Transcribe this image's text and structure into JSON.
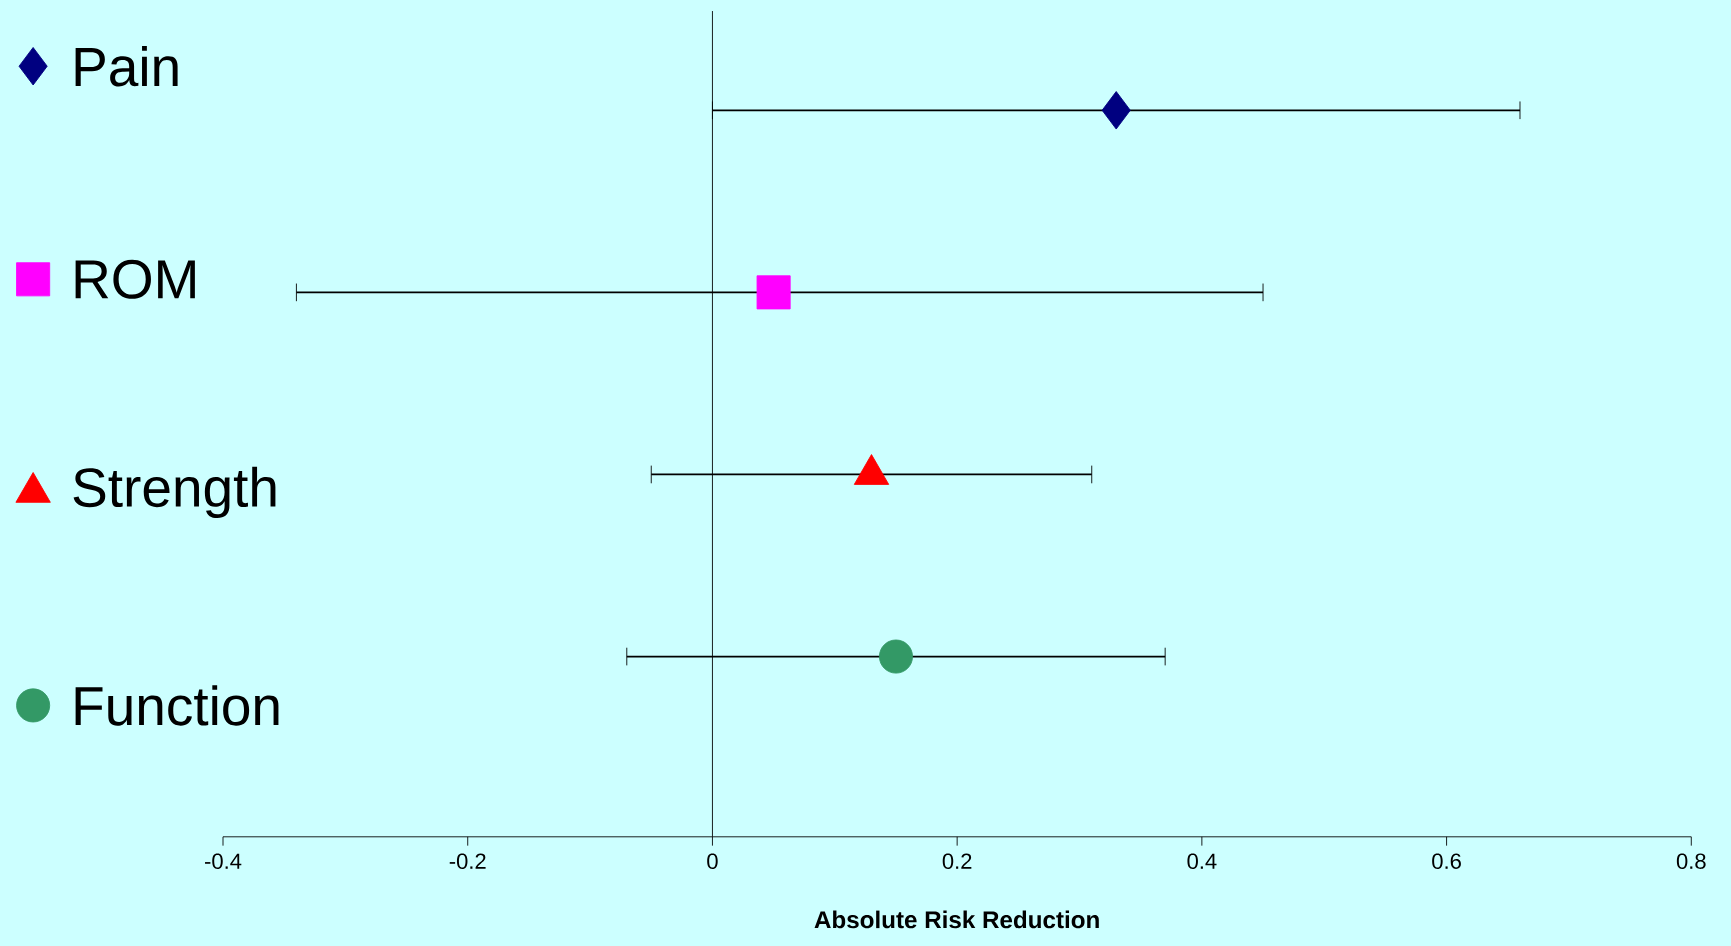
{
  "chart_data": {
    "type": "scatter",
    "orientation": "horizontal",
    "xlabel": "Absolute Risk Reduction",
    "categories": [
      null,
      null,
      null,
      null
    ],
    "xlim": [
      -0.4,
      0.8
    ],
    "xticks": [
      -0.4,
      -0.2,
      0,
      0.2,
      0.4,
      0.6,
      0.8
    ],
    "legend": "left",
    "grid": false,
    "tick_labels": "x",
    "ref_lines": [
      {
        "axis": "x",
        "value": 0,
        "color": "#000000"
      }
    ],
    "series": [
      {
        "name": "Pain",
        "color": "#000080",
        "marker": "diamond",
        "values": [
          0.33,
          null,
          null,
          null
        ],
        "errors": [
          [
            0.0,
            0.66
          ],
          null,
          null,
          null
        ]
      },
      {
        "name": "ROM",
        "color": "#ff00ff",
        "marker": "square",
        "values": [
          null,
          0.05,
          null,
          null
        ],
        "errors": [
          null,
          [
            -0.34,
            0.45
          ],
          null,
          null
        ]
      },
      {
        "name": "Strength",
        "color": "#ff0000",
        "marker": "triangle",
        "values": [
          null,
          null,
          0.13,
          null
        ],
        "errors": [
          null,
          null,
          [
            -0.05,
            0.31
          ],
          null
        ]
      },
      {
        "name": "Function",
        "color": "#339966",
        "marker": "circle",
        "values": [
          null,
          null,
          null,
          0.15
        ],
        "errors": [
          null,
          null,
          null,
          [
            -0.07,
            0.37
          ]
        ]
      }
    ]
  }
}
